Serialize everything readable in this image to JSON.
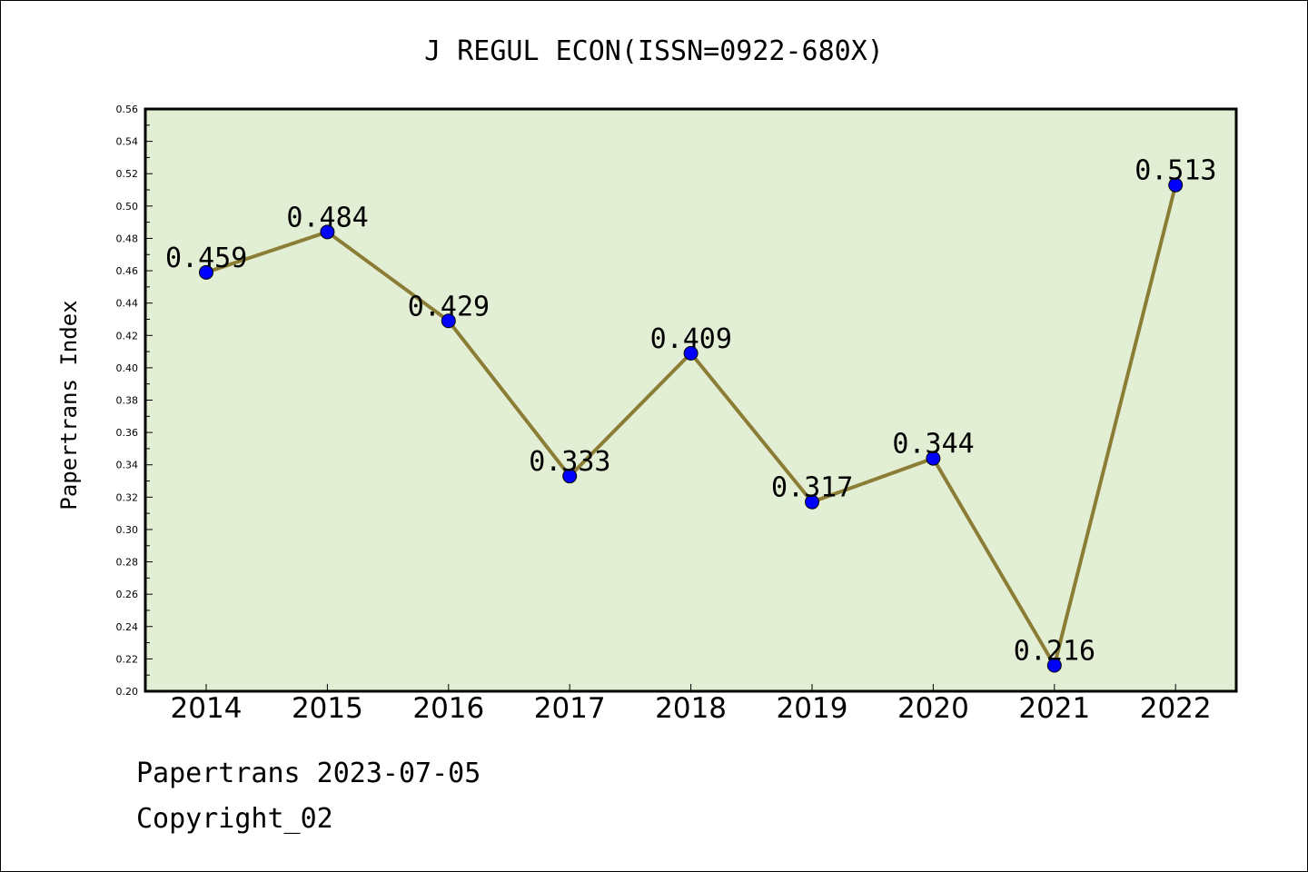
{
  "chart_data": {
    "type": "line",
    "title": "J REGUL ECON(ISSN=0922-680X)",
    "xlabel": "",
    "ylabel": "Papertrans Index",
    "categories": [
      "2014",
      "2015",
      "2016",
      "2017",
      "2018",
      "2019",
      "2020",
      "2021",
      "2022"
    ],
    "values": [
      0.459,
      0.484,
      0.429,
      0.333,
      0.409,
      0.317,
      0.344,
      0.216,
      0.513
    ],
    "data_labels": [
      "0.459",
      "0.484",
      "0.429",
      "0.333",
      "0.409",
      "0.317",
      "0.344",
      "0.216",
      "0.513"
    ],
    "ylim": [
      0.2,
      0.56
    ],
    "yticks": [
      "0.20",
      "0.22",
      "0.24",
      "0.26",
      "0.28",
      "0.30",
      "0.32",
      "0.34",
      "0.36",
      "0.38",
      "0.40",
      "0.42",
      "0.44",
      "0.46",
      "0.48",
      "0.50",
      "0.52",
      "0.54",
      "0.56"
    ],
    "grid": false,
    "legend": "none",
    "colors": {
      "plot_background": "#e2efd4",
      "line": "#8b7d35",
      "marker": "#0000ff"
    }
  },
  "footer": {
    "date_line": "Papertrans 2023-07-05",
    "copyright": "Copyright_02"
  }
}
